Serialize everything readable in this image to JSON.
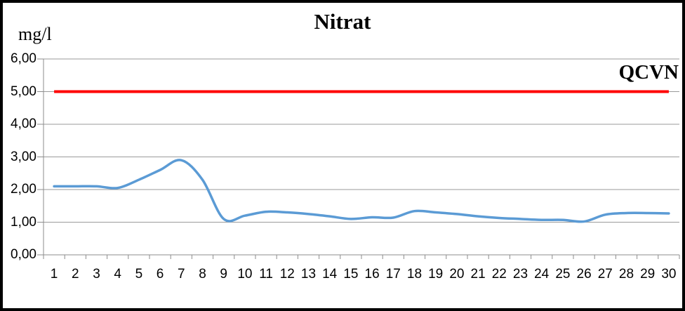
{
  "window": {
    "background_color": "#FFFFFF",
    "border_color": "#000000"
  },
  "chart_data": {
    "type": "line",
    "title": "Nitrat",
    "y_axis_unit_label": "mg/l",
    "xlabel": "",
    "ylabel": "mg/l",
    "x": [
      1,
      2,
      3,
      4,
      5,
      6,
      7,
      8,
      9,
      10,
      11,
      12,
      13,
      14,
      15,
      16,
      17,
      18,
      19,
      20,
      21,
      22,
      23,
      24,
      25,
      26,
      27,
      28,
      29,
      30
    ],
    "y_tick_values": [
      6,
      5,
      4,
      3,
      2,
      1,
      0
    ],
    "y_tick_labels": [
      "6,00",
      "5,00",
      "4,00",
      "3,00",
      "2,00",
      "1,00",
      "0,00"
    ],
    "ylim": [
      0,
      6
    ],
    "grid": "horizontal",
    "legend": "none",
    "gridline_color": "#9A9A9A",
    "axis_color": "#8C8C8C",
    "series": [
      {
        "name": "Nitrat",
        "type": "smooth-line",
        "color": "#5B9BD5",
        "stroke_width": 3.5,
        "values": [
          2.1,
          2.1,
          2.1,
          2.05,
          2.3,
          2.6,
          2.9,
          2.3,
          1.1,
          1.2,
          1.32,
          1.3,
          1.25,
          1.18,
          1.1,
          1.15,
          1.14,
          1.34,
          1.3,
          1.25,
          1.18,
          1.13,
          1.1,
          1.07,
          1.07,
          1.02,
          1.23,
          1.28,
          1.28,
          1.27
        ]
      },
      {
        "name": "QCVN",
        "type": "straight-line",
        "color": "#FF0000",
        "stroke_width": 4,
        "constant_value": 5.0,
        "annotation": "QCVN"
      }
    ]
  }
}
